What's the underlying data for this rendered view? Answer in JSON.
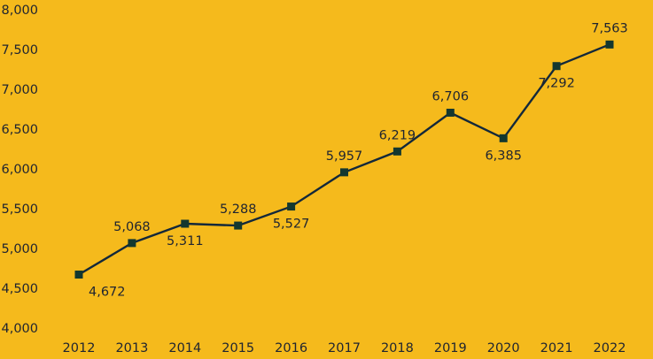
{
  "chart_data": {
    "type": "line",
    "title": "",
    "xlabel": "",
    "ylabel": "",
    "categories": [
      "2012",
      "2013",
      "2014",
      "2015",
      "2016",
      "2017",
      "2018",
      "2019",
      "2020",
      "2021",
      "2022"
    ],
    "series": [
      {
        "values": [
          4672,
          5068,
          5311,
          5288,
          5527,
          5957,
          6219,
          6706,
          6385,
          7292,
          7563
        ],
        "labels": [
          "4,672",
          "5,068",
          "5,311",
          "5,288",
          "5,527",
          "5,957",
          "6,219",
          "6,706",
          "6,385",
          "7,292",
          "7,563"
        ],
        "label_positions": [
          "below",
          "above",
          "below",
          "above",
          "below",
          "above",
          "above",
          "above",
          "below",
          "below",
          "above"
        ]
      }
    ],
    "ylim": [
      4000,
      8000
    ],
    "yticks": [
      4000,
      4500,
      5000,
      5500,
      6000,
      6500,
      7000,
      7500,
      8000
    ],
    "ytick_labels": [
      "4,000",
      "4,500",
      "5,000",
      "5,500",
      "6,000",
      "6,500",
      "7,000",
      "7,500",
      "8,000"
    ],
    "grid": false,
    "legend": "none",
    "colors": {
      "background": "#F5BA1C",
      "line": "#13283a",
      "marker": "#13372f",
      "text": "#1f2430"
    },
    "marker": "square"
  }
}
